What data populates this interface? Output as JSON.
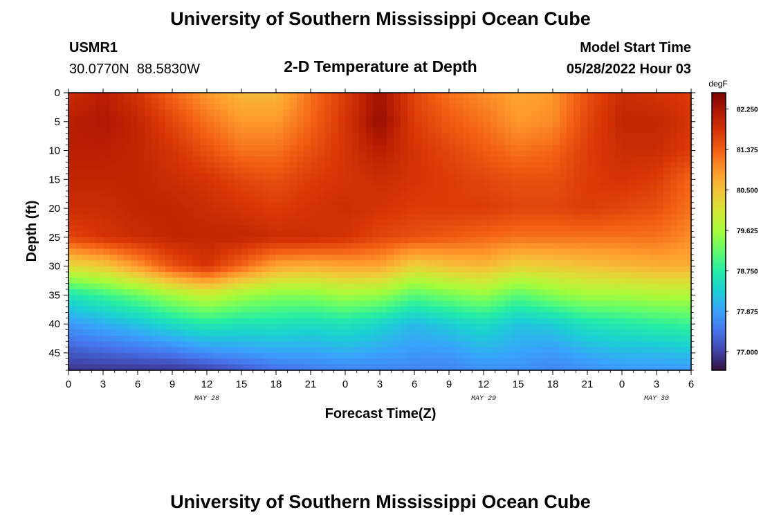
{
  "header": {
    "title": "University of Southern Mississippi Ocean Cube",
    "station_id": "USMR1",
    "station_coords": "30.0770N  88.5830W",
    "plot_title": "2-D Temperature at Depth",
    "model_start_label": "Model Start Time",
    "model_start_value": "05/28/2022 Hour 03",
    "footer_title": "University of Southern Mississippi Ocean Cube"
  },
  "chart_data": {
    "type": "heatmap",
    "title": "2-D Temperature at Depth",
    "xlabel": "Forecast Time(Z)",
    "ylabel": "Depth (ft)",
    "x_tick_labels": [
      "0",
      "3",
      "6",
      "9",
      "12",
      "15",
      "18",
      "21",
      "0",
      "3",
      "6",
      "9",
      "12",
      "15",
      "18",
      "21",
      "0",
      "3",
      "6"
    ],
    "xlim_hours": [
      0,
      54
    ],
    "date_labels": [
      {
        "text": "MAY 28",
        "hour": 12
      },
      {
        "text": "MAY 29",
        "hour": 36
      },
      {
        "text": "MAY 30",
        "hour": 51
      }
    ],
    "y_ticks": [
      0,
      5,
      10,
      15,
      20,
      25,
      30,
      35,
      40,
      45
    ],
    "ylim_ft": [
      0,
      48
    ],
    "colorbar": {
      "unit": "degF",
      "min": 76.6,
      "max": 82.6,
      "tick_values": [
        82.25,
        81.375,
        80.5,
        79.625,
        78.75,
        77.875,
        77.0
      ],
      "tick_labels": [
        "82.250",
        "81.375",
        "80.500",
        "79.625",
        "78.750",
        "77.875",
        "77.000"
      ],
      "colors": [
        "#30123b",
        "#4145ab",
        "#4675ed",
        "#39a2fc",
        "#1bcfd4",
        "#24eca6",
        "#61fc6c",
        "#a4fc3b",
        "#d1e834",
        "#f3c63a",
        "#fe9b2d",
        "#f36315",
        "#d93806",
        "#b11901",
        "#7a0402"
      ]
    },
    "grid_times_hours": [
      0,
      3,
      6,
      9,
      12,
      15,
      18,
      21,
      24,
      27,
      30,
      33,
      36,
      39,
      42,
      45,
      48,
      51,
      54
    ],
    "grid_depths_ft": [
      0,
      5,
      10,
      15,
      20,
      25,
      30,
      35,
      40,
      45,
      48
    ],
    "temperature_degF": [
      [
        81.9,
        82.1,
        81.8,
        81.3,
        80.9,
        80.6,
        80.6,
        81.2,
        81.7,
        82.3,
        81.6,
        81.2,
        81.0,
        80.8,
        80.9,
        81.5,
        81.9,
        81.8,
        81.7
      ],
      [
        82.1,
        82.2,
        82.0,
        81.6,
        81.2,
        80.9,
        80.9,
        81.3,
        81.8,
        82.4,
        81.7,
        81.4,
        81.2,
        80.9,
        81.0,
        81.6,
        82.0,
        82.0,
        81.8
      ],
      [
        82.1,
        82.1,
        82.0,
        81.8,
        81.5,
        81.2,
        81.2,
        81.5,
        81.8,
        82.1,
        81.8,
        81.6,
        81.4,
        81.2,
        81.3,
        81.7,
        81.9,
        81.9,
        81.7
      ],
      [
        82.0,
        82.0,
        82.0,
        81.9,
        81.8,
        81.6,
        81.5,
        81.7,
        81.8,
        81.9,
        81.8,
        81.7,
        81.6,
        81.5,
        81.5,
        81.7,
        81.8,
        81.7,
        81.3
      ],
      [
        81.9,
        81.9,
        82.0,
        82.0,
        81.9,
        81.8,
        81.7,
        81.8,
        81.9,
        81.8,
        81.7,
        81.7,
        81.7,
        81.6,
        81.6,
        81.7,
        81.6,
        81.5,
        81.2
      ],
      [
        81.6,
        81.8,
        81.9,
        82.0,
        82.0,
        82.0,
        81.9,
        81.9,
        81.8,
        81.6,
        81.5,
        81.4,
        81.3,
        81.2,
        81.2,
        81.2,
        81.2,
        81.2,
        81.0
      ],
      [
        80.2,
        80.4,
        80.9,
        81.5,
        81.8,
        81.3,
        80.8,
        80.7,
        80.8,
        80.8,
        80.3,
        80.5,
        80.6,
        80.3,
        80.4,
        80.5,
        80.6,
        80.7,
        80.7
      ],
      [
        78.6,
        78.9,
        79.2,
        79.6,
        79.9,
        79.6,
        79.4,
        79.4,
        79.6,
        79.5,
        79.1,
        79.3,
        79.5,
        79.1,
        79.4,
        79.6,
        79.6,
        79.7,
        79.7
      ],
      [
        77.8,
        78.0,
        78.2,
        78.5,
        78.7,
        78.6,
        78.6,
        78.5,
        78.6,
        78.4,
        78.1,
        78.3,
        78.5,
        78.2,
        78.3,
        78.6,
        78.7,
        78.8,
        78.9
      ],
      [
        77.2,
        77.3,
        77.4,
        77.5,
        77.7,
        77.8,
        77.9,
        77.9,
        78.0,
        77.9,
        77.8,
        77.8,
        78.0,
        77.9,
        77.8,
        78.0,
        78.1,
        78.1,
        78.2
      ],
      [
        76.9,
        76.9,
        76.9,
        76.9,
        77.0,
        77.2,
        77.4,
        77.5,
        77.6,
        77.6,
        77.6,
        77.6,
        77.7,
        77.7,
        77.6,
        77.7,
        77.8,
        77.8,
        77.8
      ]
    ]
  }
}
